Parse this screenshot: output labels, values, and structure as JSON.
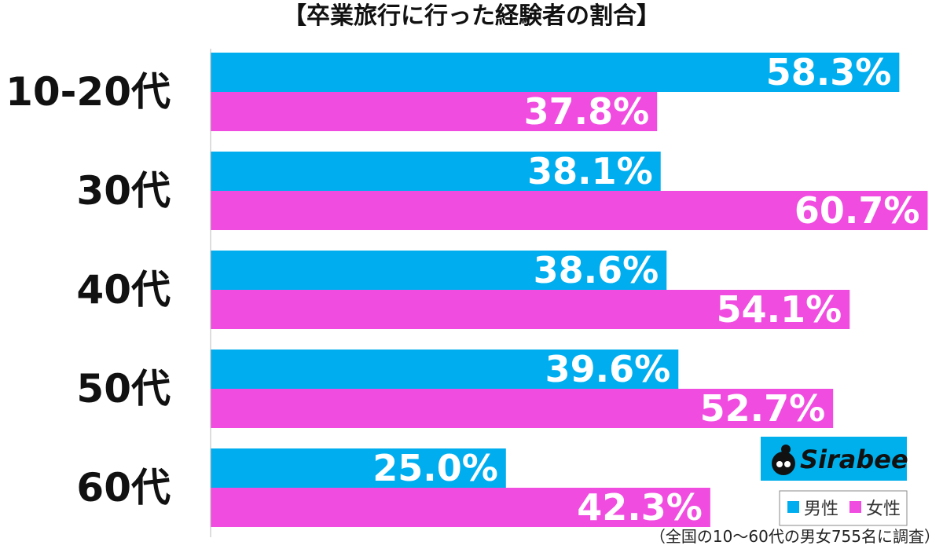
{
  "chart_data": {
    "type": "bar",
    "orientation": "horizontal",
    "title": "【卒業旅行に行った経験者の割合】",
    "categories": [
      "10-20代",
      "30代",
      "40代",
      "50代",
      "60代"
    ],
    "series": [
      {
        "name": "男性",
        "color": "#00aeef",
        "values": [
          58.3,
          38.1,
          38.6,
          39.6,
          25.0
        ],
        "labels": [
          "58.3%",
          "38.1%",
          "38.6%",
          "39.6%",
          "25.0%"
        ]
      },
      {
        "name": "女性",
        "color": "#f04ce0",
        "values": [
          37.8,
          60.7,
          54.1,
          52.7,
          42.3
        ],
        "labels": [
          "37.8%",
          "60.7%",
          "54.1%",
          "52.7%",
          "42.3%"
        ]
      }
    ],
    "xlim": [
      0,
      62
    ],
    "grid": false,
    "legend_position": "bottom-right",
    "value_unit": "%"
  },
  "footnote": "（全国の10〜60代の男女755名に調査）",
  "brand": {
    "name": "Sirabee",
    "bg_color": "#00b0ec"
  }
}
